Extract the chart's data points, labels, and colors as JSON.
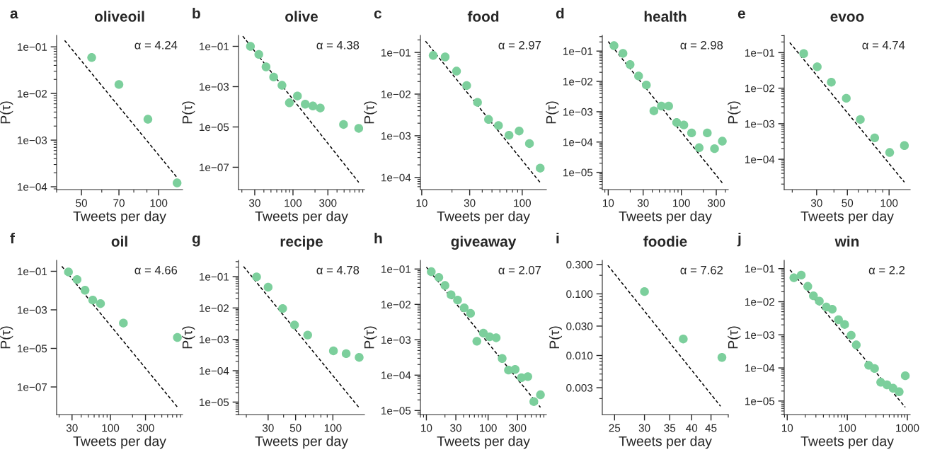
{
  "chart_data": [
    {
      "type": "scatter",
      "title": "oliveoil",
      "xlabel": "Tweets per day",
      "ylabel": "P(τ)",
      "annotations": [
        "a",
        "α = 4.24"
      ],
      "log": "xy",
      "xlim": [
        40,
        124
      ],
      "ylim": [
        8.7e-05,
        0.176
      ],
      "xticks": [
        50,
        70,
        100
      ],
      "yticks": [
        {
          "value": 0.1,
          "label": "1e−01"
        },
        {
          "value": 0.01,
          "label": "1e−02"
        },
        {
          "value": 0.001,
          "label": "1e−03"
        },
        {
          "value": 0.0001,
          "label": "1e−04"
        }
      ],
      "series": [
        {
          "marker": "circle",
          "color": "#7ccf9c",
          "x": [
            54.8,
            70,
            90.8,
            118
          ],
          "values": [
            0.059,
            0.0156,
            0.0028,
            0.000121
          ]
        },
        {
          "type": "line",
          "color": "#000000",
          "line_style": "dashed",
          "x": [
            43.0,
            117.2
          ],
          "values": [
            0.137,
            0.000165
          ]
        }
      ]
    },
    {
      "type": "scatter",
      "title": "olive",
      "xlabel": "Tweets per day",
      "ylabel": "P(τ)",
      "annotations": [
        "b",
        "α = 4.38"
      ],
      "log": "xy",
      "xlim": [
        18,
        950
      ],
      "ylim": [
        7.8e-09,
        0.35
      ],
      "xticks": [
        30,
        100,
        300
      ],
      "yticks": [
        {
          "value": 0.1,
          "label": "1e−01"
        },
        {
          "value": 0.001,
          "label": "1e−03"
        },
        {
          "value": 1e-05,
          "label": "1e−05"
        },
        {
          "value": 1e-07,
          "label": "1e−07"
        }
      ],
      "series": [
        {
          "marker": "circle",
          "color": "#7ccf9c",
          "x": [
            26.2,
            34.1,
            42.8,
            54.4,
            70.7,
            89.3,
            115,
            147,
            187,
            236,
            491,
            792
          ],
          "values": [
            0.1,
            0.04,
            0.0096,
            0.003,
            0.00117,
            0.000158,
            0.000344,
            0.000135,
            0.00011,
            8.7e-05,
            1.33e-05,
            8.5e-06
          ]
        },
        {
          "type": "line",
          "color": "#000000",
          "line_style": "dashed",
          "x": [
            20.6,
            792
          ],
          "values": [
            0.32,
            1.8e-08
          ]
        }
      ]
    },
    {
      "type": "scatter",
      "title": "food",
      "xlabel": "Tweets per day",
      "ylabel": "P(τ)",
      "annotations": [
        "c",
        "α = 2.97"
      ],
      "log": "xy",
      "xlim": [
        9.7,
        174
      ],
      "ylim": [
        5.1e-05,
        0.257
      ],
      "xticks": [
        10,
        30,
        100
      ],
      "yticks": [
        {
          "value": 0.1,
          "label": "1e−01"
        },
        {
          "value": 0.01,
          "label": "1e−02"
        },
        {
          "value": 0.001,
          "label": "1e−03"
        },
        {
          "value": 0.0001,
          "label": "1e−04"
        }
      ],
      "series": [
        {
          "marker": "circle",
          "color": "#7ccf9c",
          "x": [
            13.0,
            17.1,
            22.2,
            28.0,
            35.9,
            46.2,
            58.0,
            73.9,
            93.2,
            118,
            151
          ],
          "values": [
            0.085,
            0.078,
            0.0356,
            0.0161,
            0.00635,
            0.00247,
            0.00176,
            0.00103,
            0.0013,
            0.00065,
            0.000167
          ]
        },
        {
          "type": "line",
          "color": "#000000",
          "line_style": "dashed",
          "x": [
            10.9,
            151
          ],
          "values": [
            0.187,
            7.5e-05
          ]
        }
      ]
    },
    {
      "type": "scatter",
      "title": "health",
      "xlabel": "Tweets per day",
      "ylabel": "P(τ)",
      "annotations": [
        "d",
        "α = 2.98"
      ],
      "log": "xy",
      "xlim": [
        8.3,
        438
      ],
      "ylim": [
        2.7e-06,
        0.33
      ],
      "xticks": [
        10,
        30,
        100,
        300
      ],
      "yticks": [
        {
          "value": 0.1,
          "label": "1e−01"
        },
        {
          "value": 0.01,
          "label": "1e−02"
        },
        {
          "value": 0.001,
          "label": "1e−03"
        },
        {
          "value": 0.0001,
          "label": "1e−04"
        },
        {
          "value": 1e-05,
          "label": "1e−05"
        }
      ],
      "series": [
        {
          "marker": "circle",
          "color": "#7ccf9c",
          "x": [
            12.0,
            15.9,
            19.9,
            26.0,
            33.2,
            42.1,
            53.3,
            67.0,
            86.3,
            108,
            138,
            175,
            226,
            284,
            363
          ],
          "values": [
            0.151,
            0.084,
            0.036,
            0.0151,
            0.0076,
            0.00107,
            0.00154,
            0.00154,
            0.00044,
            0.000366,
            0.0002,
            6.5e-05,
            0.0002,
            6.05e-05,
            0.000107
          ]
        },
        {
          "type": "line",
          "color": "#000000",
          "line_style": "dashed",
          "x": [
            10,
            363
          ],
          "values": [
            0.207,
            4.5e-06
          ]
        }
      ]
    },
    {
      "type": "scatter",
      "title": "evoo",
      "xlabel": "Tweets per day",
      "ylabel": "P(τ)",
      "annotations": [
        "e",
        "α = 4.74"
      ],
      "log": "xy",
      "xlim": [
        17.5,
        142
      ],
      "ylim": [
        1.4e-05,
        0.306
      ],
      "xticks": [
        30,
        50,
        100
      ],
      "yticks": [
        {
          "value": 0.1,
          "label": "1e−01"
        },
        {
          "value": 0.01,
          "label": "1e−02"
        },
        {
          "value": 0.001,
          "label": "1e−03"
        },
        {
          "value": 0.0001,
          "label": "1e−04"
        }
      ],
      "series": [
        {
          "marker": "circle",
          "color": "#7ccf9c",
          "x": [
            24.2,
            30.3,
            38.3,
            49.1,
            62.0,
            78.7,
            101,
            129
          ],
          "values": [
            0.094,
            0.04,
            0.0147,
            0.0052,
            0.00131,
            0.0004,
            0.000155,
            0.000243
          ]
        },
        {
          "type": "line",
          "color": "#000000",
          "line_style": "dashed",
          "x": [
            19.2,
            129
          ],
          "values": [
            0.192,
            2.26e-05
          ]
        }
      ]
    },
    {
      "type": "scatter",
      "title": "oil",
      "xlabel": "Tweets per day",
      "ylabel": "P(τ)",
      "annotations": [
        "f",
        "α = 4.66"
      ],
      "log": "xy",
      "xlim": [
        18.5,
        960
      ],
      "ylim": [
        3.7e-09,
        0.37
      ],
      "xticks": [
        30,
        100,
        300
      ],
      "yticks": [
        {
          "value": 0.1,
          "label": "1e−01"
        },
        {
          "value": 0.001,
          "label": "1e−03"
        },
        {
          "value": 1e-05,
          "label": "1e−05"
        },
        {
          "value": 1e-07,
          "label": "1e−07"
        }
      ],
      "series": [
        {
          "marker": "circle",
          "color": "#7ccf9c",
          "x": [
            26.8,
            35.1,
            45.1,
            57.4,
            73.2,
            150,
            815
          ],
          "values": [
            0.092,
            0.0375,
            0.0104,
            0.0032,
            0.0021,
            0.000206,
            3.7e-05
          ]
        },
        {
          "type": "line",
          "color": "#000000",
          "line_style": "dashed",
          "x": [
            21.8,
            815
          ],
          "values": [
            0.18,
            9.1e-09
          ]
        }
      ]
    },
    {
      "type": "scatter",
      "title": "recipe",
      "xlabel": "Tweets per day",
      "ylabel": "P(τ)",
      "annotations": [
        "g",
        "α = 4.78"
      ],
      "log": "xy",
      "xlim": [
        17.3,
        180
      ],
      "ylim": [
        4e-06,
        0.33
      ],
      "xticks": [
        30,
        50,
        100
      ],
      "yticks": [
        {
          "value": 0.1,
          "label": "1e−01"
        },
        {
          "value": 0.01,
          "label": "1e−02"
        },
        {
          "value": 0.001,
          "label": "1e−03"
        },
        {
          "value": 0.0001,
          "label": "1e−04"
        },
        {
          "value": 1e-05,
          "label": "1e−05"
        }
      ],
      "series": [
        {
          "marker": "circle",
          "color": "#7ccf9c",
          "x": [
            24.2,
            30,
            39.3,
            49.0,
            62.6,
            101,
            128,
            163
          ],
          "values": [
            0.098,
            0.046,
            0.0096,
            0.00287,
            0.00137,
            0.00043,
            0.00035,
            0.000266
          ]
        },
        {
          "type": "line",
          "color": "#000000",
          "line_style": "dashed",
          "x": [
            19.0,
            163
          ],
          "values": [
            0.21,
            6.6e-06
          ]
        }
      ]
    },
    {
      "type": "scatter",
      "title": "giveaway",
      "xlabel": "Tweets per day",
      "ylabel": "P(τ)",
      "annotations": [
        "h",
        "α = 2.07"
      ],
      "log": "xy",
      "xlim": [
        8.0,
        880
      ],
      "ylim": [
        7.7e-06,
        0.176
      ],
      "xticks": [
        10,
        30,
        100,
        300
      ],
      "yticks": [
        {
          "value": 0.1,
          "label": "1e−01"
        },
        {
          "value": 0.01,
          "label": "1e−02"
        },
        {
          "value": 0.001,
          "label": "1e−03"
        },
        {
          "value": 0.0001,
          "label": "1e−04"
        },
        {
          "value": 1e-05,
          "label": "1e−05"
        }
      ],
      "series": [
        {
          "marker": "circle",
          "color": "#7ccf9c",
          "x": [
            12.0,
            15.9,
            20.0,
            25.1,
            32.0,
            41.0,
            51.9,
            65.7,
            83.9,
            106,
            135,
            169,
            214,
            274,
            347,
            440,
            551,
            705
          ],
          "values": [
            0.084,
            0.058,
            0.0343,
            0.0187,
            0.0133,
            0.008,
            0.0056,
            0.00091,
            0.00154,
            0.00121,
            0.00114,
            0.000296,
            0.000139,
            0.000145,
            8.5e-05,
            9.1e-05,
            1.79e-05,
            2.79e-05
          ]
        },
        {
          "type": "line",
          "color": "#000000",
          "line_style": "dashed",
          "x": [
            10,
            705
          ],
          "values": [
            0.113,
            1.23e-05
          ]
        }
      ]
    },
    {
      "type": "scatter",
      "title": "foodie",
      "xlabel": "Tweets per day",
      "ylabel": "P(τ)",
      "annotations": [
        "i",
        "α = 7.62"
      ],
      "log": "xy",
      "xlim": [
        23.2,
        50
      ],
      "ylim": [
        0.0011,
        0.35
      ],
      "xticks": [
        25,
        30,
        35,
        40,
        45
      ],
      "yticks": [
        {
          "value": 0.003,
          "label": "0.003"
        },
        {
          "value": 0.01,
          "label": "0.010"
        },
        {
          "value": 0.03,
          "label": "0.030"
        },
        {
          "value": 0.1,
          "label": "0.100"
        },
        {
          "value": 0.3,
          "label": "0.300"
        }
      ],
      "series": [
        {
          "marker": "circle",
          "color": "#7ccf9c",
          "x": [
            30,
            38.0,
            48.1
          ],
          "values": [
            0.109,
            0.0185,
            0.0093
          ]
        },
        {
          "type": "line",
          "color": "#000000",
          "line_style": "dashed",
          "x": [
            24.0,
            47.7
          ],
          "values": [
            0.29,
            0.0015
          ]
        }
      ]
    },
    {
      "type": "scatter",
      "title": "win",
      "xlabel": "Tweets per day",
      "ylabel": "P(τ)",
      "annotations": [
        "j",
        "α = 2.2"
      ],
      "log": "xy",
      "xlim": [
        8.9,
        1114
      ],
      "ylim": [
        3.9e-06,
        0.178
      ],
      "xticks": [
        10,
        100,
        1000
      ],
      "yticks": [
        {
          "value": 0.1,
          "label": "1e−01"
        },
        {
          "value": 0.01,
          "label": "1e−02"
        },
        {
          "value": 0.001,
          "label": "1e−03"
        },
        {
          "value": 0.0001,
          "label": "1e−04"
        },
        {
          "value": 1e-05,
          "label": "1e−05"
        }
      ],
      "series": [
        {
          "marker": "circle",
          "color": "#7ccf9c",
          "x": [
            12.9,
            17.1,
            22.0,
            27.3,
            34.2,
            44.8,
            56.1,
            71.4,
            90.2,
            116,
            141,
            227,
            284,
            360,
            458,
            578,
            731,
            923
          ],
          "values": [
            0.053,
            0.0636,
            0.0291,
            0.0151,
            0.0104,
            0.0069,
            0.00593,
            0.00285,
            0.00205,
            0.00097,
            0.000495,
            0.00012,
            9.6e-05,
            3.7e-05,
            3.08e-05,
            2.43e-05,
            1.9e-05,
            5.8e-05
          ]
        },
        {
          "type": "line",
          "color": "#000000",
          "line_style": "dashed",
          "x": [
            11.1,
            923
          ],
          "values": [
            0.092,
            6.5e-06
          ]
        }
      ]
    }
  ]
}
